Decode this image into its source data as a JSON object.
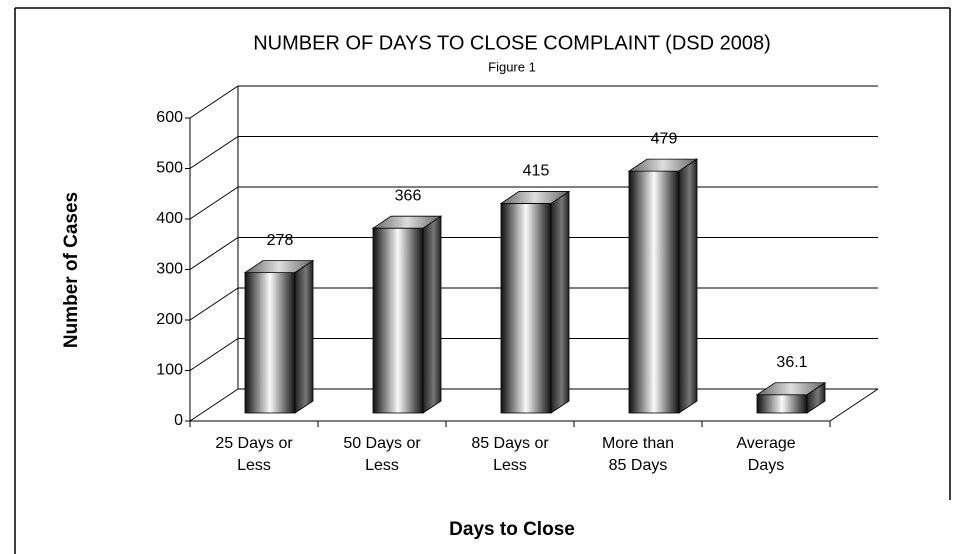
{
  "chart_data": {
    "type": "bar3d",
    "title": "NUMBER OF DAYS TO CLOSE COMPLAINT (DSD 2008)",
    "subtitle": "Figure 1",
    "x_label": "Days to Close",
    "y_label": "Number of Cases",
    "categories": [
      "25 Days or Less",
      "50 Days or Less",
      "85 Days or Less",
      "More than 85 Days",
      "Average Days"
    ],
    "values": [
      278,
      366,
      415,
      479,
      36.1
    ],
    "color": "#000000",
    "ylim": [
      0,
      600
    ],
    "yticks": [
      0,
      100,
      200,
      300,
      400,
      500,
      600
    ],
    "grid": true
  }
}
